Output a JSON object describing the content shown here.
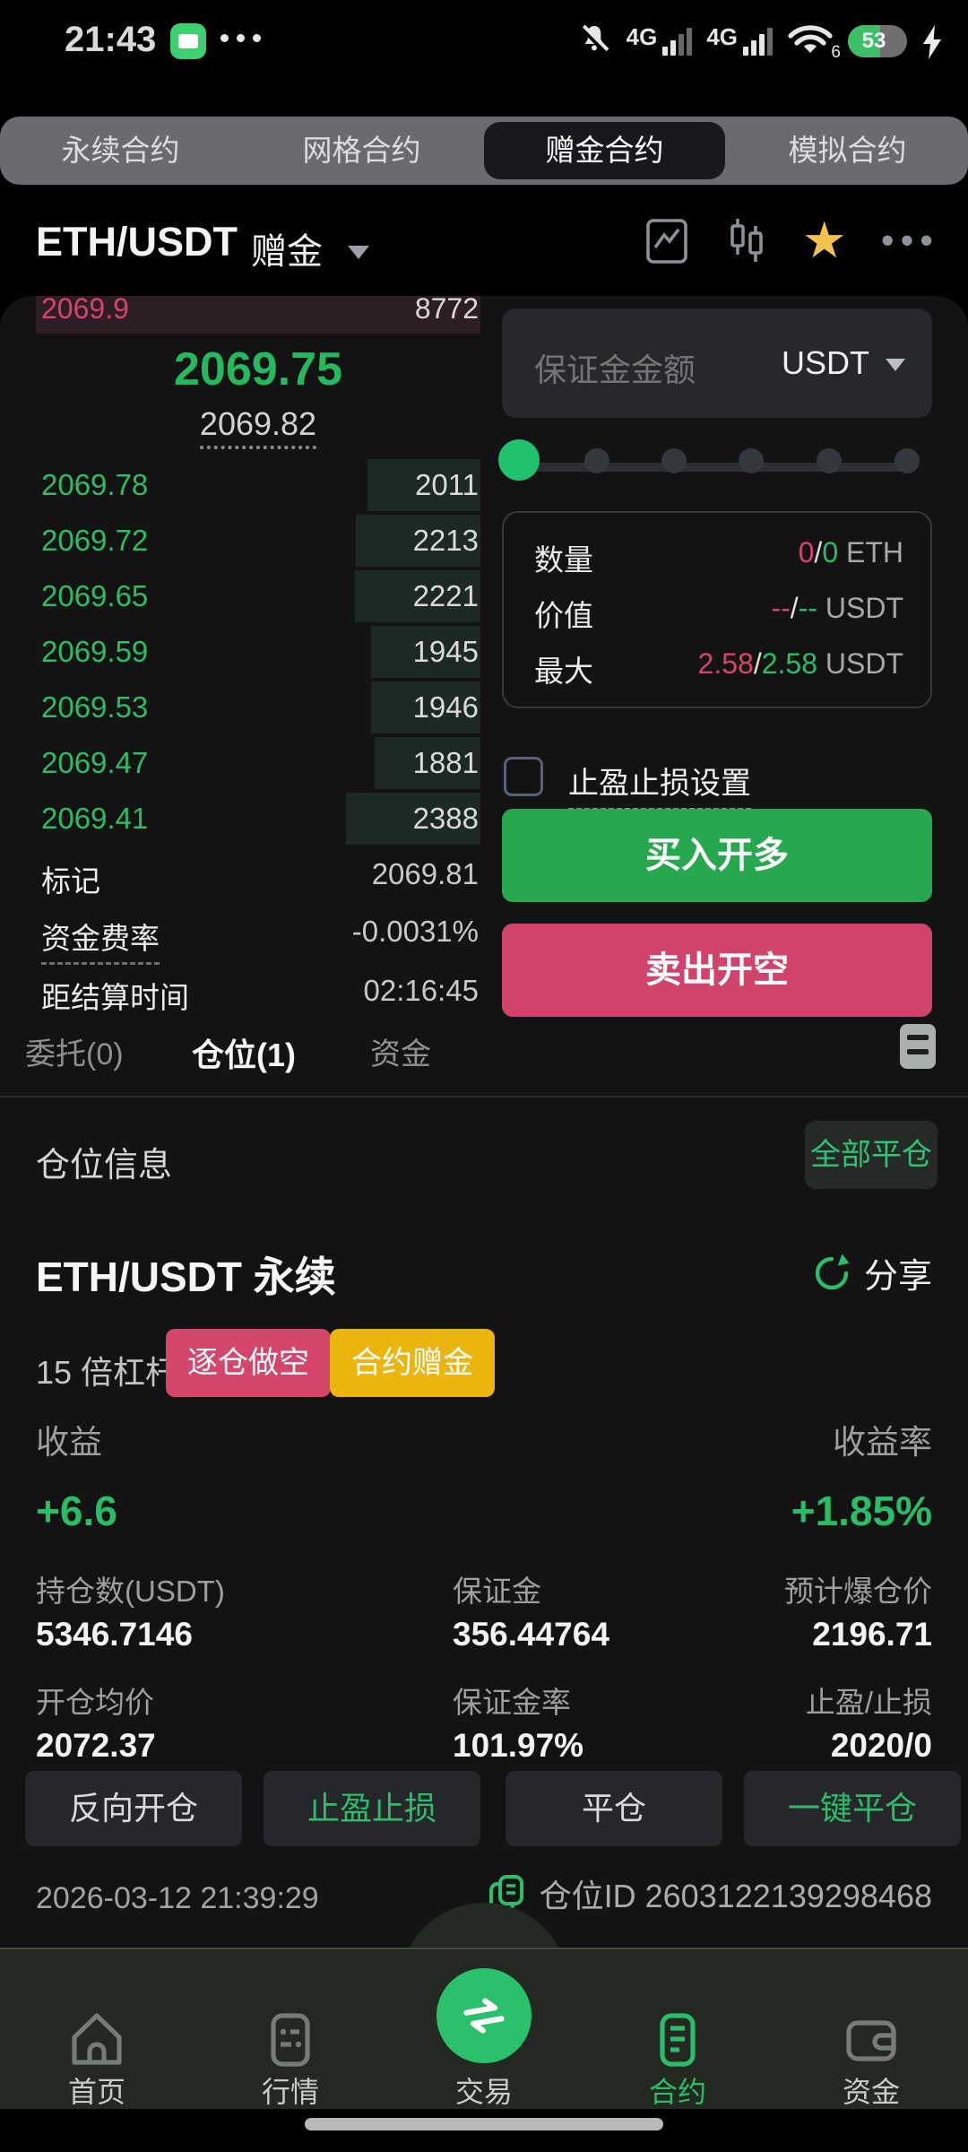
{
  "colors": {
    "green": "#2abd68",
    "red": "#d8436b",
    "buy_button": "#28a84e",
    "sell_button": "#d0436a",
    "badge_yellow": "#ecb50e",
    "star_gold": "#f3c24d"
  },
  "status_bar": {
    "time": "21:43",
    "net1": "4G",
    "net2": "4G",
    "wifi_band": "6",
    "battery": "53"
  },
  "top_tabs": {
    "items": [
      {
        "label": "永续合约"
      },
      {
        "label": "网格合约"
      },
      {
        "label": "赠金合约"
      },
      {
        "label": "模拟合约"
      }
    ]
  },
  "pair_header": {
    "symbol": "ETH/USDT",
    "mode": "赠金"
  },
  "orderbook": {
    "ask": {
      "price": "2069.9",
      "amount": "8772"
    },
    "last_price": "2069.75",
    "index_price": "2069.82",
    "bids": [
      {
        "price": "2069.78",
        "amount": "2011"
      },
      {
        "price": "2069.72",
        "amount": "2213"
      },
      {
        "price": "2069.65",
        "amount": "2221"
      },
      {
        "price": "2069.59",
        "amount": "1945"
      },
      {
        "price": "2069.53",
        "amount": "1946"
      },
      {
        "price": "2069.47",
        "amount": "1881"
      },
      {
        "price": "2069.41",
        "amount": "2388"
      }
    ],
    "mark_label": "标记",
    "mark_value": "2069.81",
    "funding_label": "资金费率",
    "funding_value": "-0.0031%",
    "settle_label": "距结算时间",
    "settle_value": "02:16:45"
  },
  "order_form": {
    "margin_placeholder": "保证金金额",
    "currency": "USDT",
    "qty_label": "数量",
    "qty_red": "0",
    "qty_sep": "/",
    "qty_green": "0",
    "qty_unit": " ETH",
    "val_label": "价值",
    "val_red": "--",
    "val_sep": "/",
    "val_green": "--",
    "val_unit": " USDT",
    "max_label": "最大",
    "max_red": "2.58",
    "max_sep": "/",
    "max_green": "2.58",
    "max_unit": " USDT",
    "tpsl_label": "止盈止损设置",
    "buy_label": "买入开多",
    "sell_label": "卖出开空"
  },
  "position_tabs": {
    "orders": "委托(0)",
    "positions": "仓位(1)",
    "assets": "资金"
  },
  "position": {
    "section_title": "仓位信息",
    "close_all": "全部平仓",
    "pair": "ETH/USDT 永续",
    "share": "分享",
    "leverage": "15 倍杠杆",
    "badge_mode": "逐仓做空",
    "badge_bonus": "合约赠金",
    "pnl_label": "收益",
    "pnl_value": "+6.6",
    "roe_label": "收益率",
    "roe_value": "+1.85%",
    "stats": [
      {
        "label": "持仓数(USDT)",
        "value": "5346.7146"
      },
      {
        "label": "保证金",
        "value": "356.44764"
      },
      {
        "label": "预计爆仓价",
        "value": "2196.71"
      },
      {
        "label": "开仓均价",
        "value": "2072.37"
      },
      {
        "label": "保证金率",
        "value": "101.97%"
      },
      {
        "label": "止盈/止损",
        "value": "2020/0"
      }
    ],
    "buttons": [
      {
        "label": "反向开仓"
      },
      {
        "label": "止盈止损"
      },
      {
        "label": "平仓"
      },
      {
        "label": "一键平仓"
      }
    ],
    "opened_at": "2026-03-12 21:39:29",
    "position_id": "仓位ID 2603122139298468"
  },
  "bottom_nav": {
    "items": [
      {
        "label": "首页"
      },
      {
        "label": "行情"
      },
      {
        "label": "交易"
      },
      {
        "label": "合约"
      },
      {
        "label": "资金"
      }
    ]
  }
}
